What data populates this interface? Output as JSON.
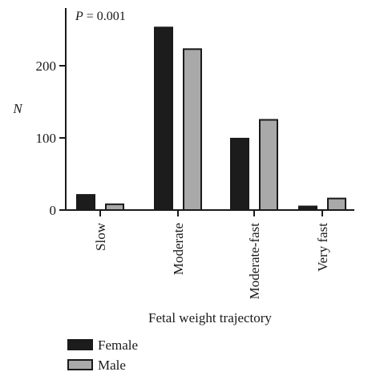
{
  "chart_data": {
    "type": "bar",
    "title": "",
    "annotation": {
      "italic_part": "P",
      "rest": " = 0.001"
    },
    "xlabel": "Fetal weight trajectory",
    "ylabel": "N",
    "ylim": [
      0,
      280
    ],
    "yticks": [
      0,
      100,
      200
    ],
    "categories": [
      "Slow",
      "Moderate",
      "Moderate-fast",
      "Very fast"
    ],
    "series": [
      {
        "name": "Female",
        "color": "#1c1c1c",
        "values": [
          21,
          253,
          99,
          5
        ]
      },
      {
        "name": "Male",
        "color": "#a9a9a9",
        "values": [
          8,
          223,
          125,
          16
        ]
      }
    ],
    "legend_position": "bottom-left",
    "grid": false
  }
}
